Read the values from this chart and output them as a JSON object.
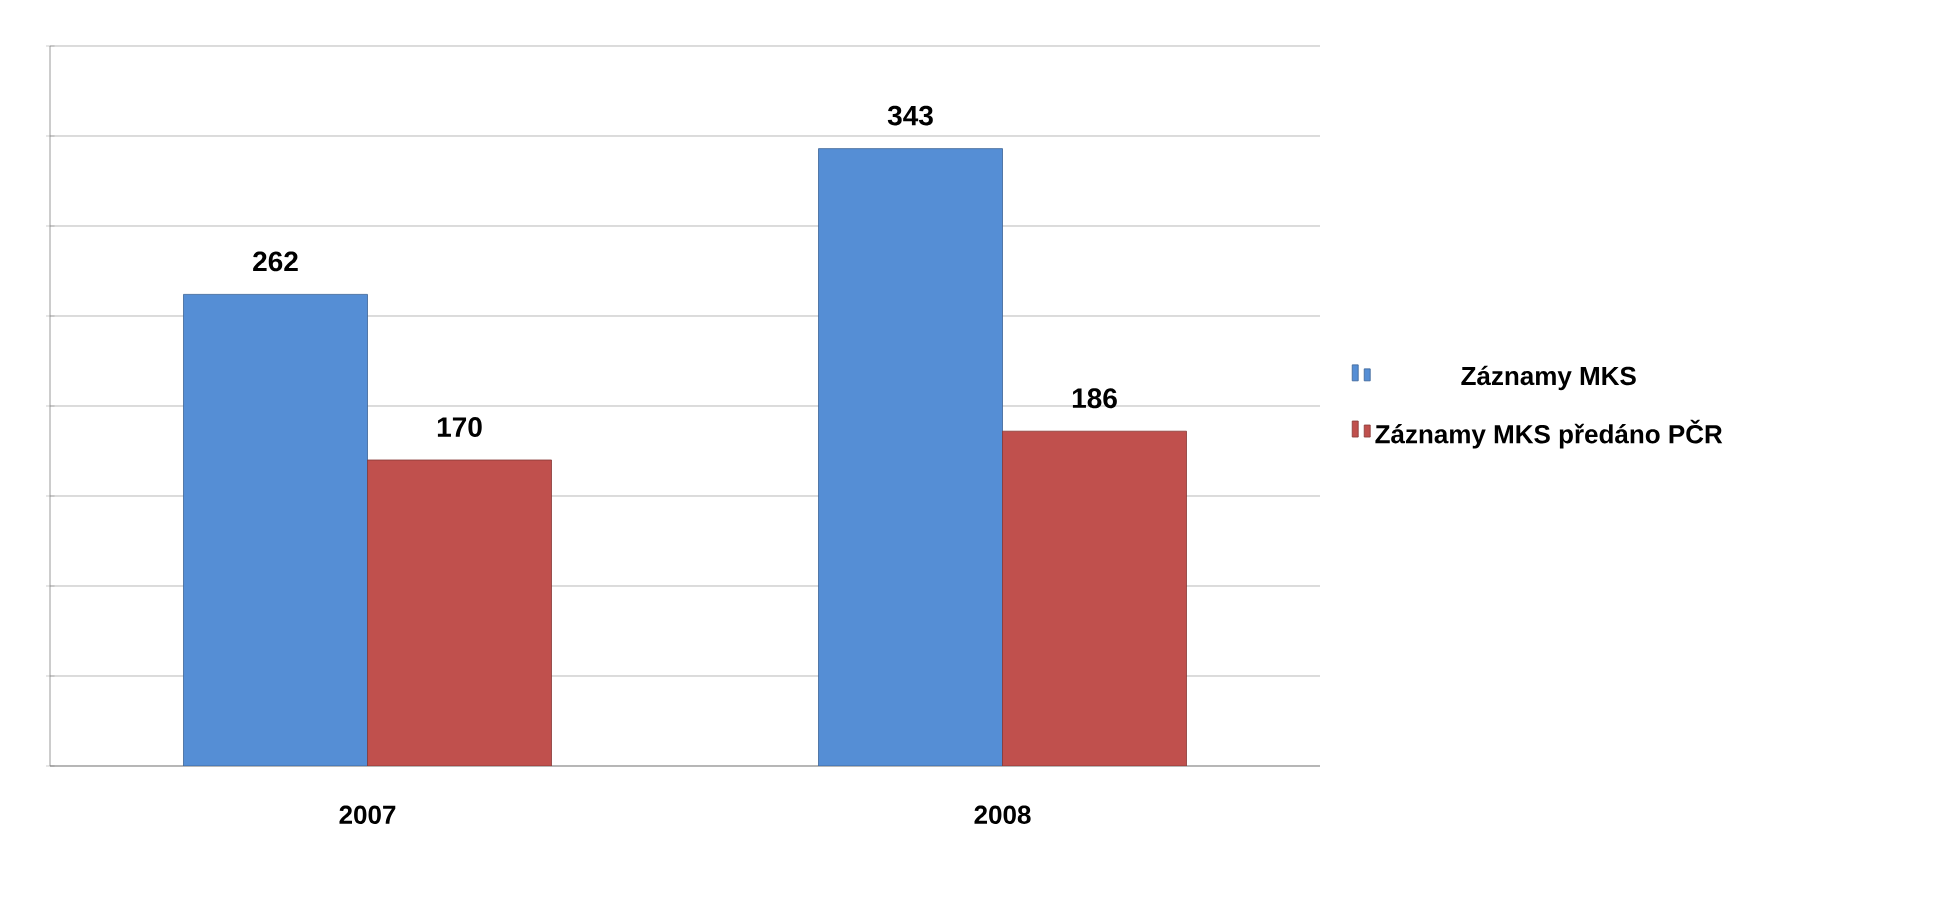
{
  "chart_data": {
    "type": "bar",
    "categories": [
      "2007",
      "2008"
    ],
    "series": [
      {
        "name": "Záznamy MKS",
        "color": "#558ed5",
        "values": [
          262,
          343
        ]
      },
      {
        "name": "Záznamy MKS předáno PČR",
        "color": "#c0504d",
        "values": [
          170,
          186
        ]
      }
    ],
    "ylim": [
      0,
      400
    ],
    "yticks": [
      {
        "value": 0,
        "label": null
      },
      {
        "value": 50,
        "label": null
      },
      {
        "value": 100,
        "label": null
      },
      {
        "value": 150,
        "label": null
      },
      {
        "value": 200,
        "label": null
      },
      {
        "value": 250,
        "label": null
      },
      {
        "value": 300,
        "label": null
      },
      {
        "value": 350,
        "label": null
      },
      {
        "value": 400,
        "label": null
      }
    ],
    "grid": "y",
    "legend": "right",
    "data_labels": true
  }
}
